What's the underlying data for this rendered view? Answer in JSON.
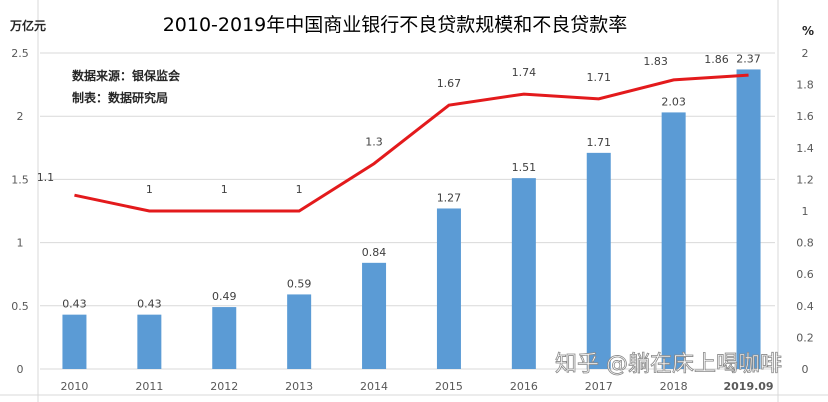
{
  "chart_data": {
    "type": "bar+line",
    "title": "2010-2019年中国商业银行不良贷款规模和不良贷款率",
    "ylabel_left": "万亿元",
    "ylabel_right": "%",
    "categories": [
      "2010",
      "2011",
      "2012",
      "2013",
      "2014",
      "2015",
      "2016",
      "2017",
      "2018",
      "2019.09"
    ],
    "series": [
      {
        "type": "bar",
        "axis": "left",
        "values": [
          0.43,
          0.43,
          0.49,
          0.59,
          0.84,
          1.27,
          1.51,
          1.71,
          2.03,
          2.37
        ],
        "color": "#5b9bd5"
      },
      {
        "type": "line",
        "axis": "right",
        "values": [
          1.1,
          1,
          1,
          1,
          1.3,
          1.67,
          1.74,
          1.71,
          1.83,
          1.86
        ],
        "color": "#e31a1c"
      }
    ],
    "ylim_left": [
      0,
      2.5
    ],
    "yticks_left": [
      "0",
      "0.5",
      "1",
      "1.5",
      "2",
      "2.5"
    ],
    "ylim_right": [
      0,
      2
    ],
    "yticks_right": [
      "0",
      "0.2",
      "0.4",
      "0.6",
      "0.8",
      "1",
      "1.2",
      "1.4",
      "1.6",
      "1.8",
      "2"
    ],
    "grid": true,
    "annotations": [
      "数据来源：银保监会",
      "制表：数据研究局"
    ],
    "watermark": "知乎 @躺在床上喝咖啡"
  }
}
